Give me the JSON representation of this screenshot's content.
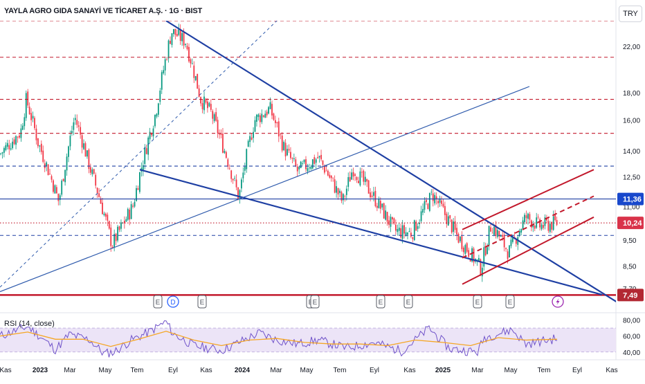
{
  "header": {
    "title": "YAYLA AGRO GIDA SANAYİ VE TİCARET A.Ş. · 1G · BIST",
    "currency": "TRY"
  },
  "rsi_panel": {
    "label": "RSI (14, close)"
  },
  "colors": {
    "up": "#089981",
    "down": "#f23645",
    "trend_blue": "#1e3fa3",
    "light_blue": "#2e5aac",
    "red_line": "#c2182b",
    "dash_red": "#c2182b",
    "dash_blue": "#1e3fa3",
    "rsi_line": "#6f52c9",
    "rsi_ma": "#f5a623",
    "rsi_band": "#ece4f7",
    "price_badge_blue": "#1848cc",
    "price_badge_red": "#d9334a",
    "low_badge": "#b22833",
    "event_icon": "#555a63",
    "div_icon": "#2962ff",
    "flash_icon": "#9c27b0"
  },
  "chart_data": [
    {
      "type": "candlestick",
      "title": "YAYLA AGRO GIDA SANAYİ VE TİCARET A.Ş. · 1G · BIST",
      "y_scale": "log",
      "ylim": [
        7.3,
        24.6
      ],
      "y_ticks": [
        22.0,
        18.0,
        16.0,
        14.0,
        12.5,
        11.0,
        9.5,
        8.5,
        7.7
      ],
      "y_tick_labels": [
        "22,00",
        "18,00",
        "16,00",
        "14,00",
        "12,50",
        "11,00",
        "9,50",
        "8,50",
        "7,70"
      ],
      "x_tick_labels": [
        "Kas",
        "2023",
        "Mar",
        "May",
        "Tem",
        "Eyl",
        "Kas",
        "2024",
        "Mar",
        "May",
        "Tem",
        "Eyl",
        "Kas",
        "2025",
        "Mar",
        "May",
        "Tem",
        "Eyl",
        "Kas"
      ],
      "x_range": [
        0,
        880
      ],
      "key_path_x": [
        0,
        30,
        38,
        55,
        85,
        108,
        130,
        162,
        192,
        225,
        248,
        268,
        290,
        305,
        345,
        368,
        390,
        410,
        430,
        460,
        495,
        510,
        545,
        570,
        595,
        625,
        660,
        695,
        710,
        735,
        760,
        780,
        805
      ],
      "key_path_close": [
        13.8,
        15.2,
        17.5,
        14.5,
        11.2,
        16.2,
        13.0,
        9.3,
        11.0,
        16.5,
        23.5,
        22.5,
        17.5,
        16.5,
        11.4,
        16.0,
        16.8,
        14.2,
        12.8,
        13.6,
        11.2,
        13.0,
        11.2,
        9.9,
        9.8,
        11.6,
        9.7,
        8.4,
        10.2,
        9.0,
        10.5,
        10.1,
        10.24
      ],
      "last_price": 10.24,
      "horizontal_levels": [
        {
          "value": 24.6,
          "style": "dashed",
          "color": "red"
        },
        {
          "value": 21.0,
          "style": "dashed",
          "color": "red"
        },
        {
          "value": 17.5,
          "style": "dashed",
          "color": "red"
        },
        {
          "value": 15.1,
          "style": "dashed",
          "color": "red"
        },
        {
          "value": 13.1,
          "style": "dashed",
          "color": "blue"
        },
        {
          "value": 11.36,
          "style": "solid",
          "color": "blue"
        },
        {
          "value": 10.24,
          "style": "dotted",
          "color": "red"
        },
        {
          "value": 9.7,
          "style": "dashed",
          "color": "blue"
        },
        {
          "value": 7.49,
          "style": "solid",
          "color": "darkred"
        }
      ],
      "price_badges": [
        {
          "label": "11,36",
          "value": 11.36,
          "kind": "blue"
        },
        {
          "label": "10,24",
          "value": 10.24,
          "kind": "red"
        },
        {
          "label": "7,49",
          "value": 7.49,
          "kind": "low"
        }
      ],
      "trendlines": [
        {
          "from": [
            240,
            24.6
          ],
          "to": [
            900,
            7.15
          ],
          "color": "trend_blue",
          "width": 2.2,
          "dash": false
        },
        {
          "from": [
            202,
            12.9
          ],
          "to": [
            870,
            7.5
          ],
          "color": "trend_blue",
          "width": 2.2,
          "dash": false
        },
        {
          "from": [
            0,
            7.6
          ],
          "to": [
            765,
            18.5
          ],
          "color": "light_blue",
          "width": 1.2,
          "dash": false
        },
        {
          "from": [
            0,
            7.75
          ],
          "to": [
            400,
            24.6
          ],
          "color": "light_blue",
          "width": 1.0,
          "dash": true
        },
        {
          "from": [
            668,
            9.95
          ],
          "to": [
            858,
            12.9
          ],
          "color": "red_line",
          "width": 2.0,
          "dash": false
        },
        {
          "from": [
            668,
            7.85
          ],
          "to": [
            858,
            10.5
          ],
          "color": "red_line",
          "width": 2.0,
          "dash": false
        },
        {
          "from": [
            668,
            8.8
          ],
          "to": [
            858,
            11.5
          ],
          "color": "red_line",
          "width": 2.0,
          "dash": true
        }
      ],
      "events": [
        {
          "x": 228,
          "icon": "E"
        },
        {
          "x": 250,
          "icon": "D"
        },
        {
          "x": 292,
          "icon": "E"
        },
        {
          "x": 449,
          "icon": "E"
        },
        {
          "x": 455,
          "icon": "E"
        },
        {
          "x": 550,
          "icon": "E"
        },
        {
          "x": 590,
          "icon": "E"
        },
        {
          "x": 690,
          "icon": "E"
        },
        {
          "x": 737,
          "icon": "E"
        },
        {
          "x": 806,
          "icon": "flash"
        }
      ]
    },
    {
      "type": "line",
      "title": "RSI (14, close)",
      "ylim": [
        32,
        84
      ],
      "y_ticks": [
        80.0,
        60.0,
        40.0
      ],
      "y_tick_labels": [
        "80,00",
        "60,00",
        "40,00"
      ],
      "band": [
        40,
        70
      ],
      "series": [
        {
          "name": "RSI (14, close)",
          "color": "rsi_line",
          "x": [
            0,
            40,
            60,
            80,
            100,
            130,
            150,
            165,
            190,
            215,
            240,
            250,
            280,
            320,
            345,
            375,
            400,
            430,
            460,
            500,
            540,
            580,
            600,
            620,
            650,
            690,
            700,
            740,
            760,
            805
          ],
          "values": [
            60,
            72,
            58,
            43,
            62,
            55,
            38,
            40,
            55,
            65,
            78,
            63,
            48,
            42,
            52,
            64,
            55,
            50,
            55,
            45,
            52,
            41,
            55,
            70,
            44,
            40,
            58,
            68,
            50,
            57
          ]
        },
        {
          "name": "",
          "color": "rsi_ma",
          "x": [
            0,
            40,
            80,
            120,
            160,
            200,
            240,
            280,
            320,
            360,
            400,
            440,
            480,
            520,
            560,
            600,
            640,
            680,
            720,
            760,
            805
          ],
          "values": [
            60,
            65,
            56,
            56,
            47,
            56,
            66,
            55,
            48,
            55,
            57,
            52,
            50,
            50,
            48,
            55,
            52,
            48,
            58,
            55,
            56
          ]
        }
      ]
    }
  ]
}
